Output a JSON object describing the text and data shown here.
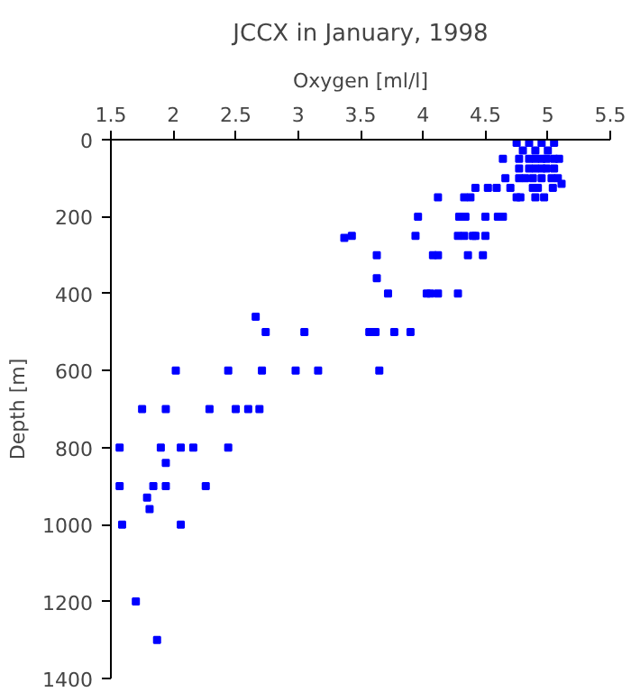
{
  "chart_data": {
    "type": "scatter",
    "title": "JCCX in January, 1998",
    "xlabel": "Oxygen [ml/l]",
    "ylabel": "Depth [m]",
    "x": [
      4.75,
      4.85,
      4.95,
      5.05,
      4.8,
      4.9,
      5.0,
      4.64,
      4.77,
      4.85,
      4.9,
      4.95,
      4.99,
      5.05,
      5.09,
      4.77,
      4.85,
      4.9,
      4.95,
      4.99,
      5.05,
      4.66,
      4.77,
      4.82,
      4.88,
      4.95,
      5.03,
      5.08,
      5.11,
      4.42,
      4.52,
      4.59,
      4.7,
      4.88,
      4.92,
      5.04,
      4.12,
      4.33,
      4.38,
      4.75,
      4.78,
      4.9,
      4.97,
      3.96,
      4.29,
      4.34,
      4.5,
      4.6,
      4.64,
      3.37,
      3.43,
      3.94,
      4.28,
      4.33,
      4.4,
      4.42,
      4.5,
      3.63,
      4.08,
      4.12,
      4.36,
      4.48,
      3.63,
      3.72,
      4.03,
      4.06,
      4.12,
      4.28,
      2.66,
      2.74,
      3.05,
      3.57,
      3.62,
      3.77,
      3.9,
      2.02,
      2.44,
      2.71,
      2.98,
      3.16,
      3.65,
      1.75,
      1.94,
      2.29,
      2.5,
      2.6,
      2.69,
      1.57,
      1.9,
      2.06,
      2.16,
      2.44,
      1.94,
      1.57,
      1.84,
      1.94,
      2.26,
      1.79,
      1.81,
      1.59,
      2.06,
      1.7,
      1.87
    ],
    "values": [
      8,
      8,
      8,
      8,
      28,
      28,
      28,
      50,
      50,
      50,
      50,
      50,
      50,
      50,
      50,
      75,
      75,
      75,
      75,
      75,
      75,
      100,
      100,
      100,
      100,
      100,
      100,
      100,
      115,
      125,
      125,
      125,
      125,
      125,
      125,
      125,
      150,
      150,
      150,
      150,
      150,
      150,
      150,
      200,
      200,
      200,
      200,
      200,
      200,
      255,
      250,
      250,
      250,
      250,
      250,
      250,
      250,
      300,
      300,
      300,
      300,
      300,
      360,
      400,
      400,
      400,
      400,
      400,
      460,
      500,
      500,
      500,
      500,
      500,
      500,
      600,
      600,
      600,
      600,
      600,
      600,
      700,
      700,
      700,
      700,
      700,
      700,
      800,
      800,
      800,
      800,
      800,
      840,
      900,
      900,
      900,
      900,
      930,
      960,
      1000,
      1000,
      1200,
      1300
    ],
    "color": "#0000ff",
    "marker": "square",
    "xlim": [
      1.5,
      5.5
    ],
    "xticks": [
      {
        "value": 1.5,
        "label": "1.5"
      },
      2,
      {
        "value": 2.5,
        "label": "2.5"
      },
      3,
      {
        "value": 3.5,
        "label": "3.5"
      },
      4,
      {
        "value": 4.5,
        "label": "4.5"
      },
      5,
      {
        "value": 5.5,
        "label": "5.5"
      }
    ],
    "ylim": [
      1400,
      0
    ],
    "yticks": [
      0,
      200,
      400,
      600,
      800,
      1000,
      1200,
      1400
    ],
    "grid": false
  }
}
